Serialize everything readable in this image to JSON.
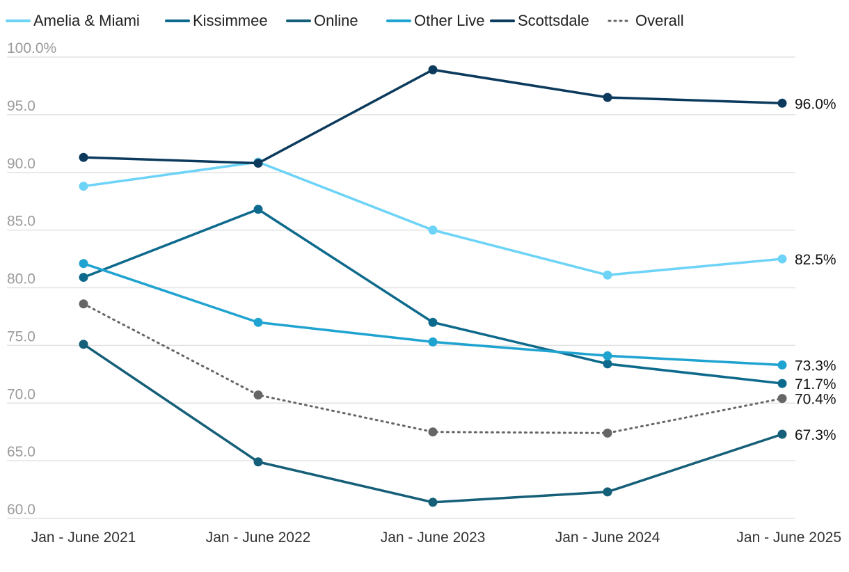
{
  "chart_data": {
    "type": "line",
    "categories": [
      "Jan - June 2021",
      "Jan - June 2022",
      "Jan - June 2023",
      "Jan - June 2024",
      "Jan - June 2025"
    ],
    "y_ticks": [
      "100.0%",
      "95.0",
      "90.0",
      "85.0",
      "80.0",
      "75.0",
      "70.0",
      "65.0",
      "60.0"
    ],
    "y_tick_values": [
      100,
      95,
      90,
      85,
      80,
      75,
      70,
      65,
      60
    ],
    "ylim": [
      60,
      100
    ],
    "grid": true,
    "legend_position": "top",
    "series": [
      {
        "name": "Amelia & Miami",
        "color": "#6dd3f7",
        "dash": false,
        "values": [
          88.8,
          90.9,
          85.0,
          81.1,
          82.5
        ],
        "end_label": "82.5%"
      },
      {
        "name": "Kissimmee",
        "color": "#0e6a8c",
        "dash": false,
        "values": [
          80.9,
          86.8,
          77.0,
          73.4,
          71.7
        ],
        "end_label": "71.7%"
      },
      {
        "name": "Online",
        "color": "#155f78",
        "dash": false,
        "values": [
          75.1,
          64.9,
          61.4,
          62.3,
          67.3
        ],
        "end_label": "67.3%"
      },
      {
        "name": "Other Live",
        "color": "#1fa3d0",
        "dash": false,
        "values": [
          82.1,
          77.0,
          75.3,
          74.1,
          73.3
        ],
        "end_label": "73.3%"
      },
      {
        "name": "Scottsdale",
        "color": "#0b3a5c",
        "dash": false,
        "values": [
          91.3,
          90.8,
          98.9,
          96.5,
          96.0
        ],
        "end_label": "96.0%"
      },
      {
        "name": "Overall",
        "color": "#666666",
        "dash": true,
        "values": [
          78.6,
          70.7,
          67.5,
          67.4,
          70.4
        ],
        "end_label": "70.4%"
      }
    ]
  }
}
